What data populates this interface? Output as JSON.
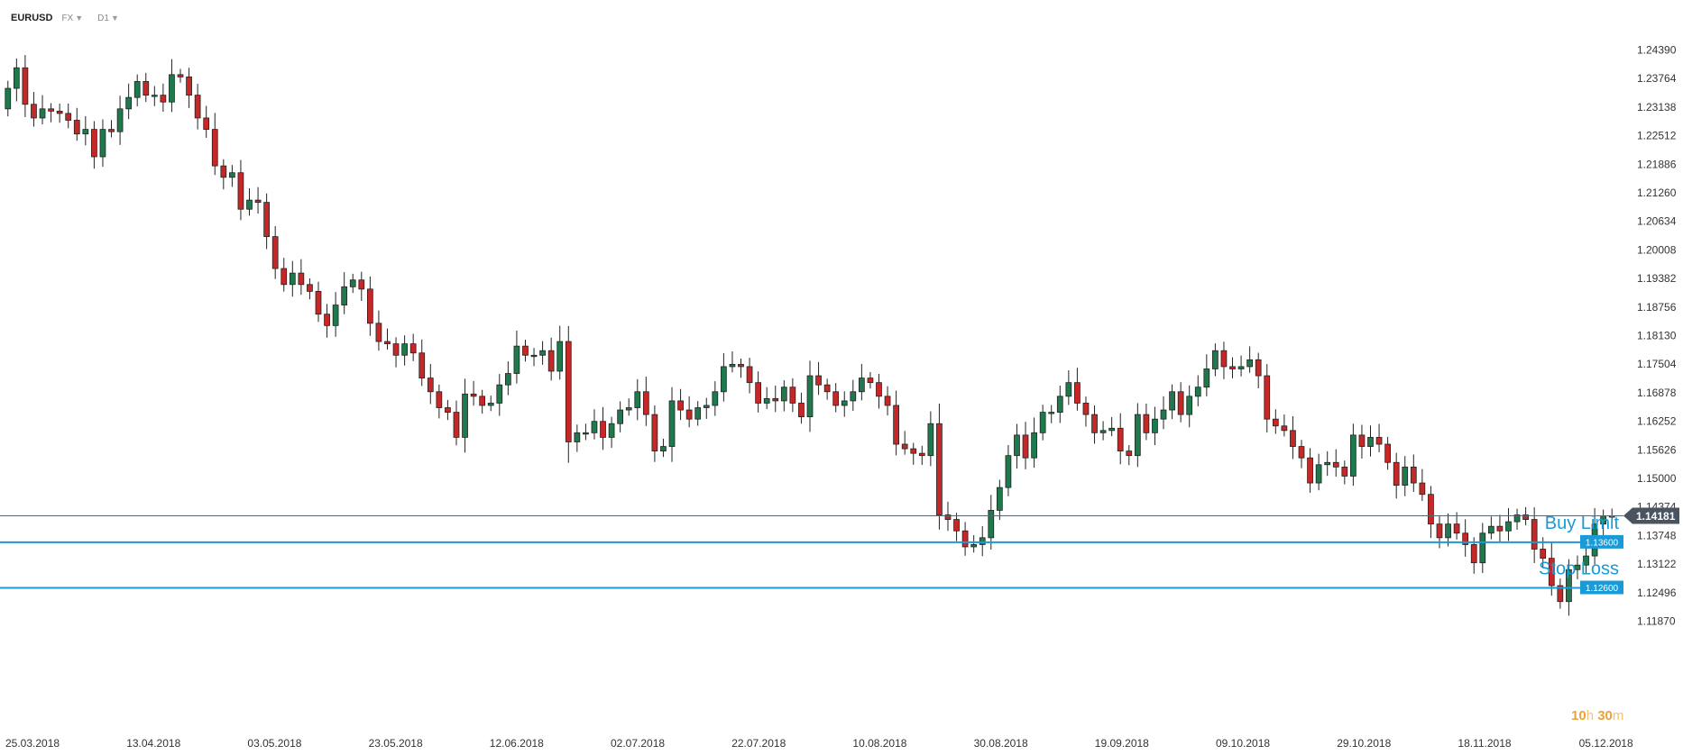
{
  "toolbar": {
    "symbol": "EURUSD",
    "market": "FX",
    "timeframe": "D1"
  },
  "colors": {
    "bull": "#1e7a4d",
    "bear": "#c62828",
    "order_line": "#1a9ad6",
    "price_line": "#5a6470",
    "current_badge": "#4a5360"
  },
  "current_price": {
    "value": 1.14181,
    "label": "1.14181"
  },
  "orders": [
    {
      "name": "Buy Limit",
      "price": 1.136,
      "label": "1.13600"
    },
    {
      "name": "Stop Loss",
      "price": 1.126,
      "label": "1.12600"
    }
  ],
  "countdown": {
    "hours": "10",
    "hours_unit": "h",
    "minutes": "30",
    "minutes_unit": "m"
  },
  "chart_data": {
    "type": "candlestick",
    "title": "",
    "xlabel": "",
    "ylabel": "",
    "ylim": [
      1.117,
      1.247
    ],
    "grid": false,
    "y_ticks": [
      "1.24390",
      "1.23764",
      "1.23138",
      "1.22512",
      "1.21886",
      "1.21260",
      "1.20634",
      "1.20008",
      "1.19382",
      "1.18756",
      "1.18130",
      "1.17504",
      "1.16878",
      "1.16252",
      "1.15626",
      "1.15000",
      "1.14374",
      "1.13748",
      "1.13122",
      "1.12496",
      "1.11870"
    ],
    "x_ticks": [
      "25.03.2018",
      "13.04.2018",
      "03.05.2018",
      "23.05.2018",
      "12.06.2018",
      "02.07.2018",
      "22.07.2018",
      "10.08.2018",
      "30.08.2018",
      "19.09.2018",
      "09.10.2018",
      "29.10.2018",
      "18.11.2018",
      "05.12.2018"
    ],
    "close": [
      1.2355,
      1.24,
      1.232,
      1.229,
      1.231,
      1.2305,
      1.23,
      1.2285,
      1.2255,
      1.2265,
      1.2205,
      1.2265,
      1.226,
      1.231,
      1.2335,
      1.237,
      1.234,
      1.234,
      1.2325,
      1.2385,
      1.238,
      1.234,
      1.229,
      1.2265,
      1.2185,
      1.216,
      1.217,
      1.209,
      1.211,
      1.2105,
      1.203,
      1.196,
      1.1925,
      1.195,
      1.1925,
      1.191,
      1.186,
      1.1835,
      1.188,
      1.192,
      1.1935,
      1.1915,
      1.184,
      1.18,
      1.1795,
      1.177,
      1.1795,
      1.1775,
      1.172,
      1.169,
      1.1655,
      1.1645,
      1.159,
      1.1685,
      1.168,
      1.166,
      1.1665,
      1.1705,
      1.173,
      1.179,
      1.177,
      1.177,
      1.178,
      1.1735,
      1.18,
      1.158,
      1.16,
      1.16,
      1.1625,
      1.159,
      1.162,
      1.165,
      1.1655,
      1.169,
      1.164,
      1.156,
      1.157,
      1.167,
      1.165,
      1.163,
      1.1655,
      1.166,
      1.169,
      1.1745,
      1.175,
      1.1745,
      1.171,
      1.1665,
      1.1675,
      1.167,
      1.17,
      1.1665,
      1.1635,
      1.1725,
      1.1705,
      1.169,
      1.166,
      1.167,
      1.169,
      1.172,
      1.171,
      1.168,
      1.166,
      1.1575,
      1.1565,
      1.1555,
      1.155,
      1.162,
      1.142,
      1.141,
      1.1385,
      1.135,
      1.1355,
      1.137,
      1.143,
      1.148,
      1.155,
      1.1595,
      1.1545,
      1.16,
      1.1645,
      1.1645,
      1.168,
      1.171,
      1.1665,
      1.164,
      1.16,
      1.1605,
      1.161,
      1.156,
      1.155,
      1.164,
      1.16,
      1.163,
      1.165,
      1.169,
      1.164,
      1.168,
      1.17,
      1.174,
      1.178,
      1.1745,
      1.174,
      1.1745,
      1.176,
      1.1725,
      1.163,
      1.1615,
      1.1605,
      1.157,
      1.1545,
      1.149,
      1.153,
      1.1535,
      1.1525,
      1.1505,
      1.1595,
      1.157,
      1.159,
      1.1575,
      1.1535,
      1.1485,
      1.1525,
      1.149,
      1.1465,
      1.14,
      1.137,
      1.14,
      1.138,
      1.1355,
      1.1315,
      1.138,
      1.1395,
      1.1385,
      1.1405,
      1.142,
      1.141,
      1.1345,
      1.1325,
      1.1265,
      1.123,
      1.13,
      1.131,
      1.133,
      1.14,
      1.1418,
      1.1418
    ]
  }
}
